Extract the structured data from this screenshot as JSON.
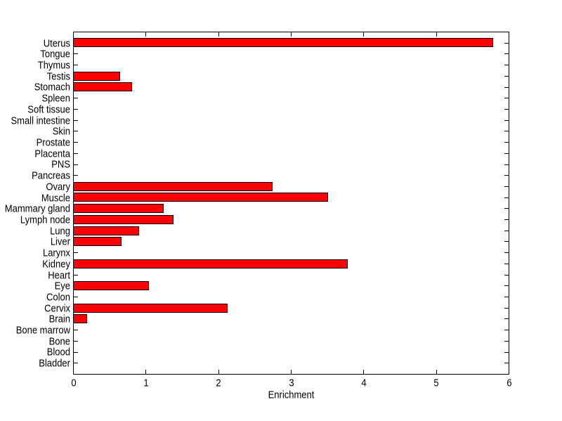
{
  "figure": {
    "background": "#ffffff",
    "axes_edge_color": "#000000"
  },
  "chart_data": {
    "type": "bar",
    "orientation": "horizontal",
    "title": "",
    "xlabel": "Enrichment",
    "ylabel": "",
    "categories": [
      "Uterus",
      "Tongue",
      "Thymus",
      "Testis",
      "Stomach",
      "Spleen",
      "Soft tissue",
      "Small intestine",
      "Skin",
      "Prostate",
      "Placenta",
      "PNS",
      "Pancreas",
      "Ovary",
      "Muscle",
      "Mammary gland",
      "Lymph node",
      "Lung",
      "Liver",
      "Larynx",
      "Kidney",
      "Heart",
      "Eye",
      "Colon",
      "Cervix",
      "Brain",
      "Bone marrow",
      "Bone",
      "Blood",
      "Bladder"
    ],
    "values": [
      5.78,
      0,
      0,
      0.64,
      0.8,
      0,
      0,
      0,
      0,
      0,
      0,
      0,
      0,
      2.74,
      3.5,
      1.24,
      1.37,
      0.9,
      0.66,
      0,
      3.77,
      0,
      1.04,
      0,
      2.12,
      0.18,
      0,
      0,
      0,
      0
    ],
    "xticks": [
      0,
      1,
      2,
      3,
      4,
      5,
      6
    ],
    "xtick_labels": [
      "0",
      "1",
      "2",
      "3",
      "4",
      "5",
      "6"
    ],
    "xlim": [
      0,
      6
    ],
    "grid": false,
    "legend": false,
    "bar_color": "#ff0000",
    "bar_edge_color": "#000000",
    "bar_width_fraction": 0.8
  }
}
